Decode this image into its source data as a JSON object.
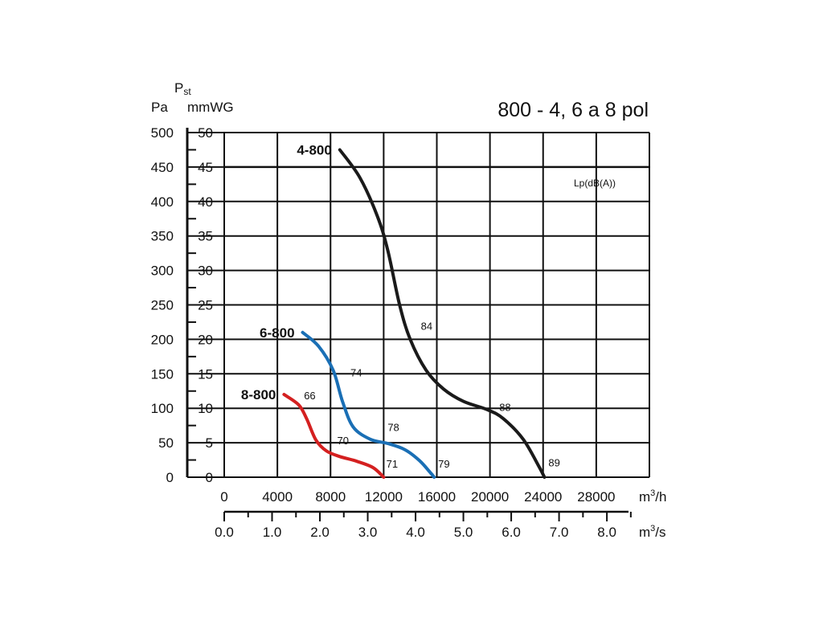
{
  "chart_data": {
    "type": "line",
    "title": "800 - 4, 6 a 8 pol",
    "annotation": "Lp(dB(A))",
    "y_axis": {
      "symbol_main": "P",
      "symbol_sub": "st",
      "unit_pa": "Pa",
      "unit_mm": "mmWG",
      "ticks_pa": [
        "0",
        "50",
        "100",
        "150",
        "200",
        "250",
        "300",
        "350",
        "400",
        "450",
        "500"
      ],
      "ticks_mm": [
        "0",
        "5",
        "10",
        "15",
        "20",
        "25",
        "30",
        "35",
        "40",
        "45",
        "50"
      ],
      "ylim_mmwg": [
        0,
        50
      ]
    },
    "x_axis_primary": {
      "unit_base": "m",
      "unit_sup": "3",
      "unit_tail": "/h",
      "ticks": [
        "0",
        "4000",
        "8000",
        "12000",
        "16000",
        "20000",
        "24000",
        "28000"
      ],
      "xlim": [
        0,
        32000
      ]
    },
    "x_axis_secondary": {
      "unit_base": "m",
      "unit_sup": "3",
      "unit_tail": "/s",
      "ticks": [
        "0.0",
        "1.0",
        "2.0",
        "3.0",
        "4.0",
        "5.0",
        "6.0",
        "7.0",
        "8.0"
      ]
    },
    "grid": true,
    "series": [
      {
        "name": "4-800",
        "color": "#1a1a1a",
        "points": [
          [
            8700,
            47.5
          ],
          [
            10200,
            43.5
          ],
          [
            11500,
            38
          ],
          [
            12300,
            33
          ],
          [
            13200,
            25
          ],
          [
            14000,
            20
          ],
          [
            15200,
            15.5
          ],
          [
            16500,
            12.8
          ],
          [
            18000,
            11
          ],
          [
            19800,
            9.8
          ],
          [
            21000,
            8.5
          ],
          [
            22500,
            5.5
          ],
          [
            23700,
            1.5
          ],
          [
            24100,
            0
          ]
        ],
        "labels": [
          {
            "text": "84",
            "x": 14800,
            "y": 21.4
          },
          {
            "text": "88",
            "x": 20700,
            "y": 9.6
          },
          {
            "text": "89",
            "x": 24400,
            "y": 1.6
          }
        ]
      },
      {
        "name": "6-800",
        "color": "#1a6fb5",
        "points": [
          [
            5900,
            21
          ],
          [
            7100,
            19
          ],
          [
            8200,
            15.5
          ],
          [
            8900,
            11
          ],
          [
            9700,
            7.3
          ],
          [
            11000,
            5.5
          ],
          [
            12300,
            4.9
          ],
          [
            13600,
            4
          ],
          [
            14700,
            2.4
          ],
          [
            15500,
            0.7
          ],
          [
            15800,
            0
          ]
        ],
        "labels": [
          {
            "text": "74",
            "x": 9500,
            "y": 14.6
          },
          {
            "text": "78",
            "x": 12300,
            "y": 6.7
          },
          {
            "text": "79",
            "x": 16100,
            "y": 1.4
          }
        ]
      },
      {
        "name": "8-800",
        "color": "#d42020",
        "points": [
          [
            4500,
            12
          ],
          [
            5600,
            10.5
          ],
          [
            6200,
            8.5
          ],
          [
            6900,
            5.4
          ],
          [
            7700,
            3.8
          ],
          [
            8700,
            3
          ],
          [
            10000,
            2.3
          ],
          [
            11200,
            1.4
          ],
          [
            12000,
            0
          ]
        ],
        "labels": [
          {
            "text": "66",
            "x": 6000,
            "y": 11.3
          },
          {
            "text": "70",
            "x": 8500,
            "y": 4.8
          },
          {
            "text": "71",
            "x": 12200,
            "y": 1.4
          }
        ]
      }
    ]
  }
}
